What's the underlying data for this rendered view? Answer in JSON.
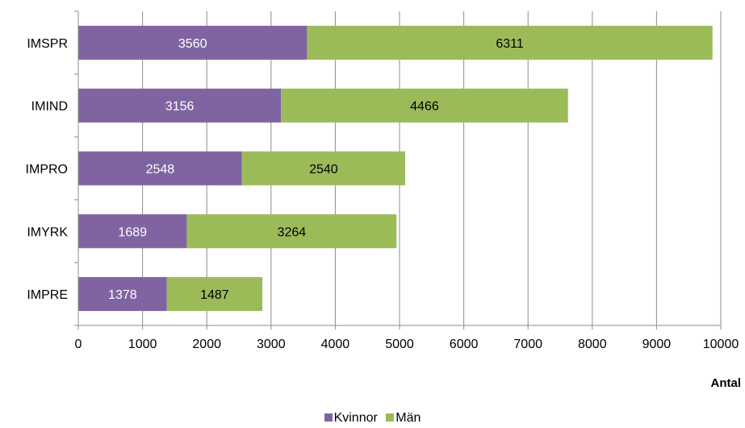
{
  "chart_data": {
    "type": "bar",
    "orientation": "horizontal",
    "stacked": true,
    "categories": [
      "IMSPR",
      "IMIND",
      "IMPRO",
      "IMYRK",
      "IMPRE"
    ],
    "series": [
      {
        "name": "Kvinnor",
        "values": [
          3560,
          3156,
          2548,
          1689,
          1378
        ],
        "color": "#8064a2",
        "label_color": "#ffffff"
      },
      {
        "name": "Män",
        "values": [
          6311,
          4466,
          2540,
          3264,
          1487
        ],
        "color": "#9bbb59",
        "label_color": "#000000"
      }
    ],
    "xlabel": "Antal",
    "xlim": [
      0,
      10000
    ],
    "xticks": [
      "0",
      "1000",
      "2000",
      "3000",
      "4000",
      "5000",
      "6000",
      "7000",
      "8000",
      "9000",
      "10000"
    ],
    "grid": true,
    "legend_position": "bottom"
  }
}
